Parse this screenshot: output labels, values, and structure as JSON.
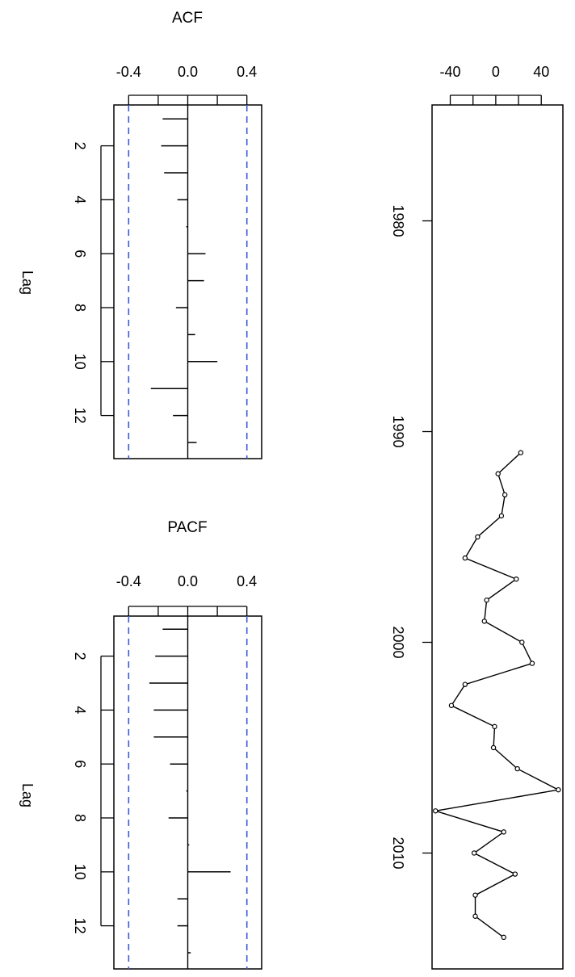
{
  "chart_data": [
    {
      "type": "bar",
      "title": "ACF",
      "ylabel": "Lag",
      "xlim": [
        -0.5,
        0.5
      ],
      "x_ticks": [
        -0.4,
        0.0,
        0.4
      ],
      "x_tick_labels": [
        "-0.4",
        "0.0",
        "0.4"
      ],
      "y_ticks": [
        2,
        4,
        6,
        8,
        10,
        12
      ],
      "confidence_bound": 0.4,
      "lags": [
        1,
        2,
        3,
        4,
        5,
        6,
        7,
        8,
        9,
        10,
        11,
        12,
        13
      ],
      "values": [
        -0.17,
        -0.18,
        -0.16,
        -0.07,
        -0.01,
        0.12,
        0.11,
        -0.08,
        0.05,
        0.2,
        -0.25,
        -0.1,
        0.06
      ]
    },
    {
      "type": "bar",
      "title": "PACF",
      "ylabel": "Lag",
      "xlim": [
        -0.5,
        0.5
      ],
      "x_ticks": [
        -0.4,
        0.0,
        0.4
      ],
      "x_tick_labels": [
        "-0.4",
        "0.0",
        "0.4"
      ],
      "y_ticks": [
        2,
        4,
        6,
        8,
        10,
        12
      ],
      "confidence_bound": 0.4,
      "lags": [
        1,
        2,
        3,
        4,
        5,
        6,
        7,
        8,
        9,
        10,
        11,
        12,
        13
      ],
      "values": [
        -0.17,
        -0.22,
        -0.26,
        -0.23,
        -0.23,
        -0.12,
        -0.01,
        -0.13,
        0.01,
        0.29,
        -0.07,
        -0.07,
        0.02
      ]
    },
    {
      "type": "line",
      "xlim": [
        -56,
        59
      ],
      "x_ticks": [
        -40,
        0,
        40
      ],
      "x_tick_labels": [
        "-40",
        "0",
        "40"
      ],
      "ylim": [
        1974.5,
        2015.5
      ],
      "y_ticks": [
        1980,
        1990,
        2000,
        2010
      ],
      "y_tick_labels": [
        "1980",
        "1990",
        "2000",
        "2010"
      ],
      "points": [
        {
          "year": 1991,
          "value": 22
        },
        {
          "year": 1992,
          "value": 2
        },
        {
          "year": 1993,
          "value": 8
        },
        {
          "year": 1994,
          "value": 5
        },
        {
          "year": 1995,
          "value": -16
        },
        {
          "year": 1996,
          "value": -27
        },
        {
          "year": 1997,
          "value": 18
        },
        {
          "year": 1998,
          "value": -8
        },
        {
          "year": 1999,
          "value": -10
        },
        {
          "year": 2000,
          "value": 23
        },
        {
          "year": 2001,
          "value": 32
        },
        {
          "year": 2002,
          "value": -27
        },
        {
          "year": 2003,
          "value": -39
        },
        {
          "year": 2004,
          "value": -1
        },
        {
          "year": 2005,
          "value": -2
        },
        {
          "year": 2006,
          "value": 19
        },
        {
          "year": 2007,
          "value": 55
        },
        {
          "year": 2008,
          "value": -53
        },
        {
          "year": 2009,
          "value": 7
        },
        {
          "year": 2010,
          "value": -19
        },
        {
          "year": 2011,
          "value": 17
        },
        {
          "year": 2012,
          "value": -18
        },
        {
          "year": 2013,
          "value": -18
        },
        {
          "year": 2014,
          "value": 7
        }
      ]
    }
  ]
}
